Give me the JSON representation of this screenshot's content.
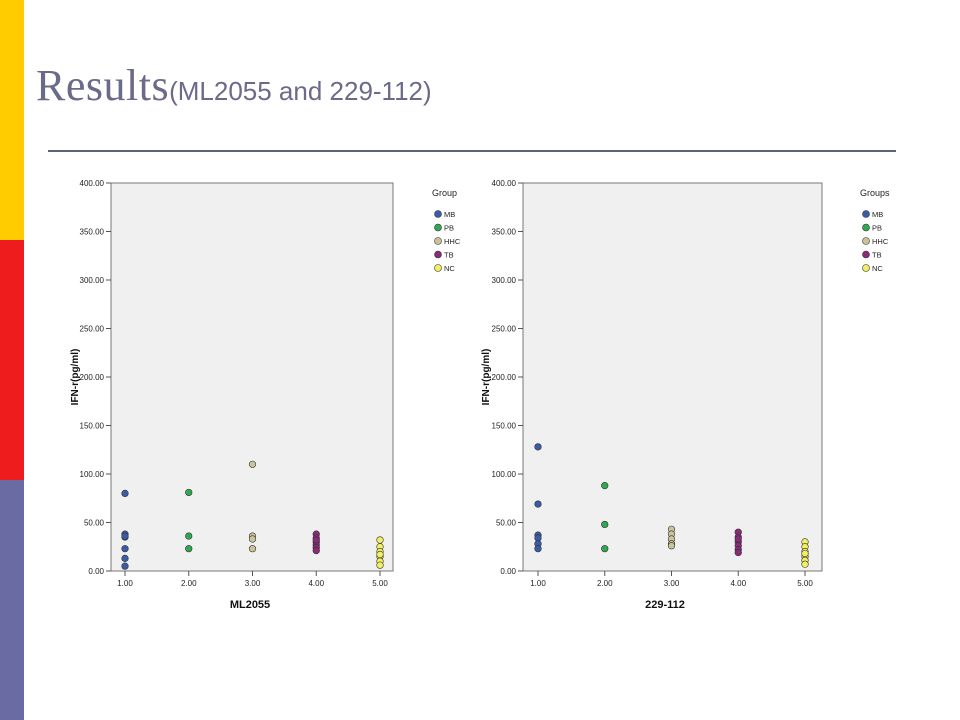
{
  "slide": {
    "title_main": "Results",
    "title_sub": "(ML2055 and 229-112)",
    "accent_colors": [
      "#ffcc00",
      "#ee1c1c",
      "#6b6ba3"
    ]
  },
  "legend_colors": {
    "MB": "#3a5ba8",
    "PB": "#2fa84f",
    "HHC": "#c9c49a",
    "TB": "#8b2a78",
    "NC": "#f2f060"
  },
  "chart_data": [
    {
      "type": "scatter",
      "title": "",
      "xlabel": "ML2055",
      "ylabel": "IFN-r(pg/ml)",
      "xlim": [
        1,
        5
      ],
      "ylim": [
        0,
        400
      ],
      "x_ticks": [
        "1.00",
        "2.00",
        "3.00",
        "4.00",
        "5.00"
      ],
      "y_ticks": [
        "0.00",
        "50.00",
        "100.00",
        "150.00",
        "200.00",
        "250.00",
        "300.00",
        "350.00",
        "400.00"
      ],
      "legend_title": "Group",
      "legend_labels": [
        "MB",
        "PB",
        "HHC",
        "TB",
        "NC"
      ],
      "legend_position": "right",
      "grid": false,
      "series": [
        {
          "name": "MB",
          "x": [
            1,
            1,
            1,
            1,
            1,
            1,
            1
          ],
          "y": [
            80,
            38,
            35,
            23,
            13,
            5,
            36
          ]
        },
        {
          "name": "PB",
          "x": [
            2,
            2,
            2
          ],
          "y": [
            81,
            36,
            23
          ]
        },
        {
          "name": "HHC",
          "x": [
            3,
            3,
            3,
            3
          ],
          "y": [
            110,
            36,
            33,
            23
          ]
        },
        {
          "name": "TB",
          "x": [
            4,
            4,
            4,
            4,
            4,
            4,
            4
          ],
          "y": [
            38,
            34,
            30,
            27,
            24,
            21,
            32
          ]
        },
        {
          "name": "NC",
          "x": [
            5,
            5,
            5,
            5,
            5,
            5,
            5
          ],
          "y": [
            32,
            25,
            20,
            15,
            10,
            6,
            17
          ]
        }
      ]
    },
    {
      "type": "scatter",
      "title": "",
      "xlabel": "229-112",
      "ylabel": "IFN-r(pg/ml)",
      "xlim": [
        1,
        5
      ],
      "ylim": [
        0,
        400
      ],
      "x_ticks": [
        "1.00",
        "2.00",
        "3.00",
        "4.00",
        "5.00"
      ],
      "y_ticks": [
        "0.00",
        "50.00",
        "100.00",
        "150.00",
        "200.00",
        "250.00",
        "300.00",
        "350.00",
        "400.00"
      ],
      "legend_title": "Groups",
      "legend_labels": [
        "MB",
        "PB",
        "HHC",
        "TB",
        "NC"
      ],
      "legend_position": "right",
      "grid": false,
      "series": [
        {
          "name": "MB",
          "x": [
            1,
            1,
            1,
            1,
            1,
            1
          ],
          "y": [
            128,
            69,
            37,
            34,
            28,
            23
          ]
        },
        {
          "name": "PB",
          "x": [
            2,
            2,
            2
          ],
          "y": [
            88,
            48,
            23
          ]
        },
        {
          "name": "HHC",
          "x": [
            3,
            3,
            3,
            3,
            3
          ],
          "y": [
            43,
            38,
            33,
            28,
            26
          ]
        },
        {
          "name": "TB",
          "x": [
            4,
            4,
            4,
            4,
            4,
            4,
            4
          ],
          "y": [
            40,
            35,
            30,
            26,
            22,
            19,
            33
          ]
        },
        {
          "name": "NC",
          "x": [
            5,
            5,
            5,
            5,
            5,
            5,
            5
          ],
          "y": [
            30,
            25,
            20,
            15,
            11,
            7,
            18
          ]
        }
      ]
    }
  ]
}
